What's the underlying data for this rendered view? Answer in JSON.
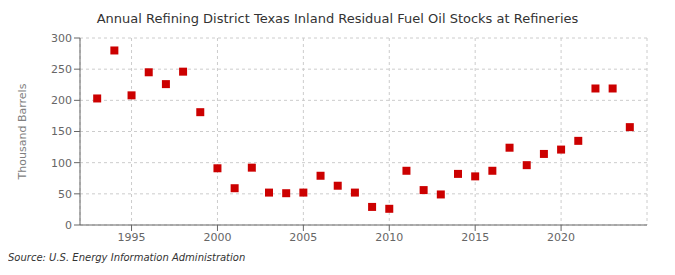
{
  "chart_data": {
    "type": "scatter",
    "title": "Annual Refining District Texas Inland Residual Fuel Oil Stocks at Refineries",
    "ylabel": "Thousand Barrels",
    "annotations": [
      "Source: U.S. Energy Information Administration"
    ],
    "x": [
      1993,
      1994,
      1995,
      1996,
      1997,
      1998,
      1999,
      2000,
      2001,
      2002,
      2003,
      2004,
      2005,
      2006,
      2007,
      2008,
      2009,
      2010,
      2011,
      2012,
      2013,
      2014,
      2015,
      2016,
      2017,
      2018,
      2019,
      2020,
      2021,
      2022,
      2023,
      2024
    ],
    "values": [
      203,
      280,
      208,
      245,
      226,
      246,
      181,
      91,
      59,
      92,
      52,
      51,
      52,
      79,
      63,
      52,
      29,
      26,
      87,
      56,
      49,
      82,
      78,
      87,
      124,
      96,
      114,
      121,
      135,
      219,
      219,
      157
    ],
    "xlim": [
      1992,
      2025
    ],
    "xticks": [
      1995,
      2000,
      2005,
      2010,
      2015,
      2020
    ],
    "ylim": [
      0,
      300
    ],
    "yticks": [
      0,
      50,
      100,
      150,
      200,
      250,
      300
    ],
    "grid": true,
    "color": "#cc0000",
    "marker": "square"
  }
}
